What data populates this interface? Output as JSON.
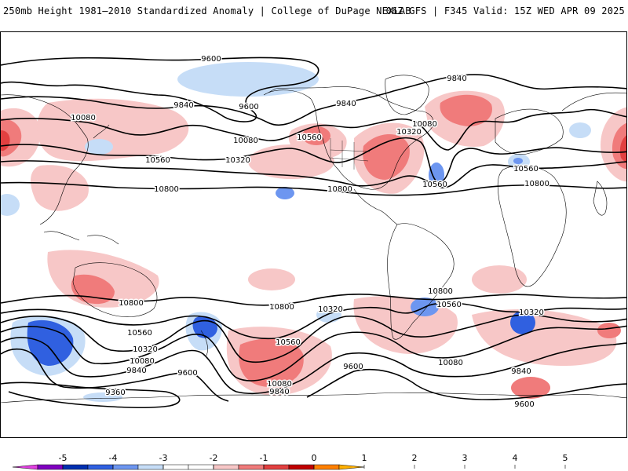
{
  "header": {
    "left_title": "250mb Height 1981–2010 Standardized Anomaly | College of DuPage NEXLAB",
    "right_title": "06Z GFS | F345 Valid: 15Z WED APR 09 2025"
  },
  "colors": {
    "contour": "#000000",
    "coast": "#000000",
    "anom_neg1": "#c6ddf7",
    "anom_neg2": "#6d96f0",
    "anom_neg3": "#3060e0",
    "anom_pos1": "#f7c7c7",
    "anom_pos2": "#f07b7b",
    "anom_pos3": "#e24040",
    "anom_pos4": "#c00000"
  },
  "contour_labels": [
    {
      "text": "9600"
    },
    {
      "text": "9600"
    },
    {
      "text": "9840"
    },
    {
      "text": "9840"
    },
    {
      "text": "9840"
    },
    {
      "text": "10080"
    },
    {
      "text": "10080"
    },
    {
      "text": "10080"
    },
    {
      "text": "10320"
    },
    {
      "text": "10320"
    },
    {
      "text": "10560"
    },
    {
      "text": "10560"
    },
    {
      "text": "10560"
    },
    {
      "text": "10560"
    },
    {
      "text": "10800"
    },
    {
      "text": "10800"
    },
    {
      "text": "10800"
    },
    {
      "text": "10800"
    },
    {
      "text": "10800"
    },
    {
      "text": "10800"
    },
    {
      "text": "10560"
    },
    {
      "text": "10560"
    },
    {
      "text": "10560"
    },
    {
      "text": "10320"
    },
    {
      "text": "10320"
    },
    {
      "text": "10320"
    },
    {
      "text": "10080"
    },
    {
      "text": "10080"
    },
    {
      "text": "10080"
    },
    {
      "text": "9840"
    },
    {
      "text": "9840"
    },
    {
      "text": "9840"
    },
    {
      "text": "9600"
    },
    {
      "text": "9600"
    },
    {
      "text": "9600"
    },
    {
      "text": "9360"
    }
  ],
  "colorbar": {
    "ticks": [
      "-5",
      "-4",
      "-3",
      "-2",
      "-1",
      "0",
      "1",
      "2",
      "3",
      "4",
      "5"
    ],
    "colors": [
      "#e040e0",
      "#8000c0",
      "#0030b0",
      "#3060e0",
      "#6d96f0",
      "#c6ddf7",
      "#ffffff",
      "#ffffff",
      "#f7c7c7",
      "#f07b7b",
      "#e24040",
      "#c00000",
      "#ff8000",
      "#ffb000"
    ]
  }
}
